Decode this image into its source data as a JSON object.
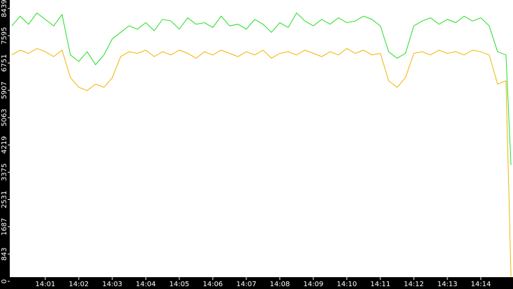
{
  "chart_data": {
    "type": "line",
    "x": [
      0,
      0.25,
      0.5,
      0.75,
      1,
      1.25,
      1.5,
      1.75,
      2,
      2.25,
      2.5,
      2.75,
      3,
      3.25,
      3.5,
      3.75,
      4,
      4.25,
      4.5,
      4.75,
      5,
      5.25,
      5.5,
      5.75,
      6,
      6.25,
      6.5,
      6.75,
      7,
      7.25,
      7.5,
      7.75,
      8,
      8.25,
      8.5,
      8.75,
      9,
      9.25,
      9.5,
      9.75,
      10,
      10.25,
      10.5,
      10.75,
      11,
      11.25,
      11.5,
      11.75,
      12,
      12.25,
      12.5,
      12.75,
      13,
      13.25,
      13.5,
      13.75,
      14,
      14.25,
      14.5,
      14.75,
      14.9
    ],
    "series": [
      {
        "color": "#22dd22",
        "values": [
          7900,
          8200,
          7950,
          8300,
          8100,
          7900,
          8250,
          7000,
          6800,
          7100,
          6700,
          7000,
          7500,
          7700,
          7900,
          7800,
          8000,
          7750,
          8100,
          8050,
          7800,
          8150,
          7950,
          8000,
          7850,
          8200,
          7900,
          7950,
          7800,
          8100,
          7950,
          7700,
          8000,
          7850,
          8300,
          8050,
          7900,
          8100,
          7950,
          8150,
          8000,
          8050,
          8200,
          8100,
          7900,
          7100,
          6900,
          7050,
          7900,
          8050,
          8150,
          7950,
          8100,
          8000,
          8200,
          8050,
          8150,
          7900,
          7100,
          7000,
          3600
        ]
      },
      {
        "color": "#f0b400",
        "values": [
          7000,
          7150,
          7050,
          7200,
          7100,
          6950,
          7150,
          6300,
          6000,
          5900,
          6100,
          6000,
          6300,
          6950,
          7100,
          7050,
          7150,
          6950,
          7100,
          7000,
          7150,
          7050,
          6900,
          7100,
          7000,
          7150,
          7050,
          6950,
          7100,
          7000,
          7150,
          6900,
          7050,
          7100,
          7000,
          7150,
          7050,
          6950,
          7100,
          7000,
          7200,
          7050,
          7150,
          7000,
          7050,
          6200,
          6000,
          6300,
          7050,
          7100,
          7000,
          7150,
          7050,
          7100,
          7000,
          7150,
          7100,
          7000,
          6100,
          6200,
          150
        ]
      }
    ],
    "xlim": [
      -0.06,
      14.96
    ],
    "xticks": [
      {
        "value": 1,
        "label": "14:01"
      },
      {
        "value": 2,
        "label": "14:02"
      },
      {
        "value": 3,
        "label": "14:03"
      },
      {
        "value": 4,
        "label": "14:04"
      },
      {
        "value": 5,
        "label": "14:05"
      },
      {
        "value": 6,
        "label": "14:06"
      },
      {
        "value": 7,
        "label": "14:07"
      },
      {
        "value": 8,
        "label": "14:08"
      },
      {
        "value": 9,
        "label": "14:09"
      },
      {
        "value": 10,
        "label": "14:10"
      },
      {
        "value": 11,
        "label": "14:11"
      },
      {
        "value": 12,
        "label": "14:12"
      },
      {
        "value": 13,
        "label": "14:13"
      },
      {
        "value": 14,
        "label": "14:14"
      }
    ],
    "ylim": [
      130,
      8700
    ],
    "yticks": [
      0,
      843,
      1687,
      2531,
      3375,
      4219,
      5063,
      5907,
      6751,
      7595,
      8439
    ]
  }
}
